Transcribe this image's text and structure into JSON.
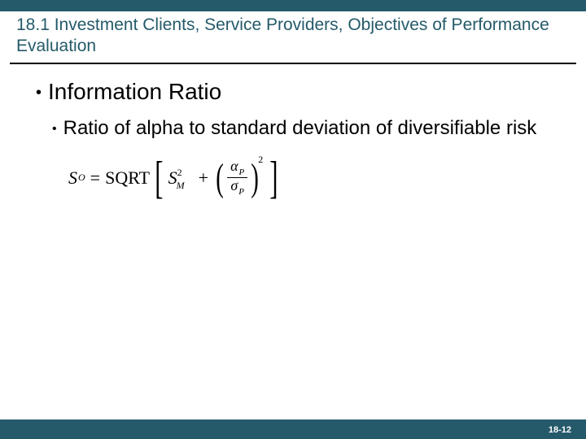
{
  "colors": {
    "bar": "#245a6a",
    "title": "#245a6a",
    "text": "#000000",
    "pagenum": "#ffffff",
    "underline": "#000000"
  },
  "title": "18.1 Investment Clients, Service Providers, Objectives of Performance Evaluation",
  "bullets": {
    "level1": "Information Ratio",
    "level2": "Ratio of alpha to standard deviation of diversifiable risk"
  },
  "formula": {
    "lhs_sym": "S",
    "lhs_sub": "O",
    "eq": "=",
    "sqrt": "SQRT",
    "s_sym": "S",
    "s_sup": "2",
    "s_sub": "M",
    "plus": "+",
    "alpha": "α",
    "alpha_sub": "P",
    "sigma": "σ",
    "sigma_sub": "P",
    "outer_exp": "2"
  },
  "page": "18-12"
}
